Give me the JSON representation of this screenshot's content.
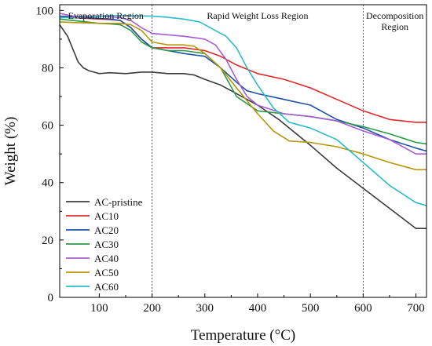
{
  "chart_data": {
    "type": "line",
    "title": "",
    "xlabel": "Temperature (°C)",
    "ylabel": "Weight (%)",
    "xlim": [
      25,
      720
    ],
    "ylim": [
      0,
      102
    ],
    "xticks": [
      100,
      200,
      300,
      400,
      500,
      600,
      700
    ],
    "yticks": [
      0,
      20,
      40,
      60,
      80,
      100
    ],
    "grid": false,
    "legend_position": "bottom-left",
    "region_dividers": [
      200,
      600
    ],
    "region_labels": [
      {
        "line1": "Evaporation Region",
        "line2": "",
        "x_start": 25,
        "x_end": 200
      },
      {
        "line1": "Rapid Weight Loss Region",
        "line2": "",
        "x_start": 200,
        "x_end": 600
      },
      {
        "line1": "Decomposition",
        "line2": "Region",
        "x_start": 600,
        "x_end": 720
      }
    ],
    "series": [
      {
        "name": "AC-pristine",
        "color": "#3b3b3b",
        "x": [
          25,
          40,
          50,
          60,
          70,
          80,
          90,
          100,
          120,
          150,
          180,
          200,
          230,
          260,
          280,
          300,
          330,
          350,
          380,
          400,
          420,
          440,
          460,
          500,
          550,
          600,
          650,
          700,
          720
        ],
        "y": [
          95,
          91,
          86.5,
          82,
          80,
          79,
          78.5,
          78,
          78.3,
          78,
          78.5,
          78.5,
          78,
          78,
          77.5,
          76,
          74,
          72,
          69,
          67,
          64.5,
          62,
          59,
          53,
          45,
          38,
          31,
          24,
          24
        ]
      },
      {
        "name": "AC10",
        "color": "#e3282a",
        "x": [
          25,
          50,
          100,
          120,
          140,
          160,
          180,
          200,
          230,
          260,
          300,
          330,
          360,
          400,
          450,
          500,
          550,
          600,
          650,
          700,
          720
        ],
        "y": [
          98,
          97.5,
          97,
          96.8,
          96.5,
          94,
          90,
          87,
          87,
          87,
          86,
          84,
          81,
          78,
          76,
          73,
          69,
          65,
          62,
          61,
          61
        ]
      },
      {
        "name": "AC20",
        "color": "#1f52a6",
        "x": [
          25,
          50,
          100,
          120,
          140,
          160,
          180,
          200,
          230,
          260,
          300,
          330,
          360,
          380,
          400,
          450,
          500,
          550,
          600,
          650,
          700,
          720
        ],
        "y": [
          98,
          97.8,
          97.2,
          97,
          96.5,
          94,
          90,
          87,
          86,
          85,
          84,
          80,
          75,
          72,
          71,
          69,
          67,
          62,
          59,
          55,
          52,
          51
        ]
      },
      {
        "name": "AC30",
        "color": "#2a9a48",
        "x": [
          25,
          50,
          100,
          120,
          140,
          160,
          180,
          200,
          230,
          260,
          300,
          330,
          360,
          400,
          450,
          500,
          550,
          600,
          650,
          700,
          720
        ],
        "y": [
          97,
          96.5,
          95.5,
          95.3,
          95,
          93,
          89,
          87,
          86,
          86,
          85,
          80,
          70,
          65,
          64,
          63,
          61.5,
          59.5,
          57,
          54,
          53.5
        ]
      },
      {
        "name": "AC40",
        "color": "#a65cd6",
        "x": [
          25,
          50,
          100,
          120,
          140,
          160,
          180,
          200,
          230,
          260,
          300,
          320,
          340,
          360,
          380,
          400,
          450,
          500,
          550,
          600,
          650,
          700,
          720
        ],
        "y": [
          99,
          98,
          98,
          97.8,
          97.5,
          96.5,
          94,
          92,
          91.5,
          91,
          90,
          88,
          83,
          76,
          70,
          67,
          64,
          63,
          61.5,
          58,
          55,
          50,
          50
        ]
      },
      {
        "name": "AC50",
        "color": "#b8950a",
        "x": [
          25,
          50,
          100,
          120,
          140,
          160,
          180,
          200,
          230,
          260,
          280,
          300,
          330,
          360,
          400,
          430,
          460,
          500,
          550,
          600,
          650,
          700,
          720
        ],
        "y": [
          96,
          95.8,
          95.5,
          95.5,
          95.5,
          95,
          93,
          89,
          88,
          88,
          87.5,
          85,
          80,
          73,
          64,
          58,
          54.5,
          54,
          52.5,
          50,
          47,
          44.5,
          44.5
        ]
      },
      {
        "name": "AC60",
        "color": "#2bbcc6",
        "x": [
          25,
          50,
          100,
          120,
          150,
          180,
          200,
          230,
          260,
          290,
          320,
          340,
          360,
          380,
          400,
          430,
          460,
          500,
          550,
          600,
          650,
          700,
          720
        ],
        "y": [
          97.5,
          97.5,
          98,
          98.2,
          98.2,
          98.1,
          98,
          97.6,
          97,
          96,
          93,
          91,
          87,
          80,
          74,
          66,
          61,
          59,
          55,
          47,
          39,
          33,
          32
        ]
      }
    ]
  }
}
